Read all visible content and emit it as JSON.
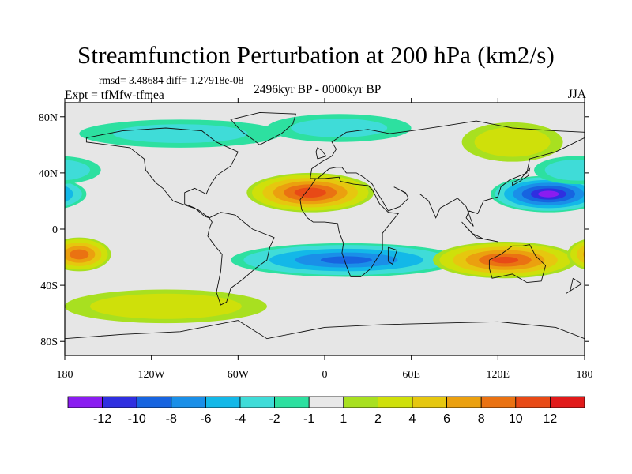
{
  "chart_data": {
    "type": "heatmap",
    "title": "Streamfunction Perturbation at 200 hPa (km2/s)",
    "subtitle_stats": "rmsd= 3.48684 diff= 1.27918e-08",
    "left_string": "Expt = tfMfw-tfmea",
    "center_string": "2496kyr BP - 0000kyr BP",
    "right_string": "JJA",
    "x_ticks": [
      "180",
      "120W",
      "60W",
      "0",
      "60E",
      "120E",
      "180"
    ],
    "y_ticks": [
      "80N",
      "40N",
      "0",
      "40S",
      "80S"
    ],
    "x_range_deg": [
      -180,
      180
    ],
    "y_range_deg": [
      -90,
      90
    ],
    "colorbar": {
      "levels": [
        "-12",
        "-10",
        "-8",
        "-6",
        "-4",
        "-2",
        "-1",
        "1",
        "2",
        "4",
        "6",
        "8",
        "10",
        "12"
      ],
      "colors": [
        "#8a1cf0",
        "#2f2fe0",
        "#1764e0",
        "#1a8fe8",
        "#13b8e8",
        "#3fdcd8",
        "#2de0a0",
        "#e8e8e8",
        "#a8e020",
        "#cfe00a",
        "#e6c70f",
        "#eba00f",
        "#ea7212",
        "#e84a16",
        "#e11a1a"
      ]
    },
    "features": [
      {
        "name": "north-atlantic-africa-high",
        "value": 11,
        "lon": -10,
        "lat": 26,
        "rx": 44,
        "ry": 14
      },
      {
        "name": "west-pacific-low",
        "value": -12,
        "lon": 155,
        "lat": 25,
        "rx": 40,
        "ry": 13
      },
      {
        "name": "southern-hemisphere-low",
        "value": -8,
        "lon": 15,
        "lat": -22,
        "rx": 80,
        "ry": 12
      },
      {
        "name": "australia-high",
        "value": 10,
        "lon": 125,
        "lat": -22,
        "rx": 50,
        "ry": 13
      },
      {
        "name": "south-pacific-high",
        "value": 9,
        "lon": -170,
        "lat": -18,
        "rx": 22,
        "ry": 12
      },
      {
        "name": "southern-ocean-positive",
        "value": 3,
        "lon": -110,
        "lat": -55,
        "rx": 70,
        "ry": 12
      },
      {
        "name": "eastern-asia-positive",
        "value": 3,
        "lon": 130,
        "lat": 62,
        "rx": 35,
        "ry": 14
      },
      {
        "name": "arctic-europe-negative",
        "value": -2,
        "lon": 10,
        "lat": 72,
        "rx": 50,
        "ry": 10
      },
      {
        "name": "north-america-negative",
        "value": -2,
        "lon": -100,
        "lat": 68,
        "rx": 70,
        "ry": 10
      },
      {
        "name": "north-pacific-negative",
        "value": -3,
        "lon": 175,
        "lat": 42,
        "rx": 30,
        "ry": 10
      }
    ]
  }
}
